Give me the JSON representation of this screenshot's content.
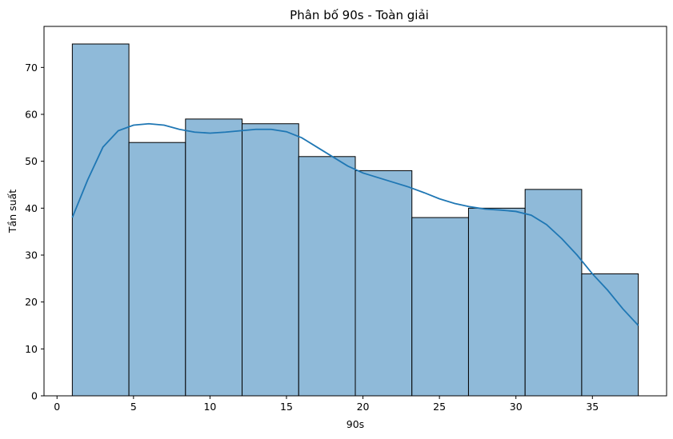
{
  "chart_data": {
    "type": "bar",
    "subtype": "histogram_with_kde",
    "title": "Phân bố 90s - Toàn giải",
    "xlabel": "90s",
    "ylabel": "Tần suất",
    "xlim": [
      -0.85,
      39.85
    ],
    "ylim": [
      0,
      78.75
    ],
    "xticks": [
      0,
      5,
      10,
      15,
      20,
      25,
      30,
      35
    ],
    "yticks": [
      0,
      10,
      20,
      30,
      40,
      50,
      60,
      70
    ],
    "bin_edges": [
      1.0,
      4.7,
      8.4,
      12.1,
      15.8,
      19.5,
      23.2,
      26.9,
      30.6,
      34.3,
      38.0
    ],
    "values": [
      75,
      54,
      59,
      58,
      51,
      48,
      38,
      40,
      44,
      26
    ],
    "kde": {
      "x": [
        1,
        2,
        3,
        4,
        5,
        6,
        7,
        8,
        9,
        10,
        11,
        12,
        13,
        14,
        15,
        16,
        17,
        18,
        19,
        20,
        21,
        22,
        23,
        24,
        25,
        26,
        27,
        28,
        29,
        30,
        31,
        32,
        33,
        34,
        35,
        36,
        37,
        38
      ],
      "y": [
        38,
        46,
        53,
        56.5,
        57.7,
        58,
        57.7,
        56.8,
        56.2,
        56,
        56.2,
        56.5,
        56.8,
        56.8,
        56.3,
        55,
        53,
        51,
        49,
        47.5,
        46.5,
        45.5,
        44.5,
        43.3,
        42,
        41,
        40.3,
        39.8,
        39.6,
        39.3,
        38.5,
        36.5,
        33.5,
        30,
        26,
        22.5,
        18.5,
        15
      ]
    },
    "colors": {
      "bar_fill": "#8fbad9",
      "bar_edge": "#000000",
      "kde_line": "#1f77b4"
    },
    "grid": false,
    "legend": "none"
  }
}
